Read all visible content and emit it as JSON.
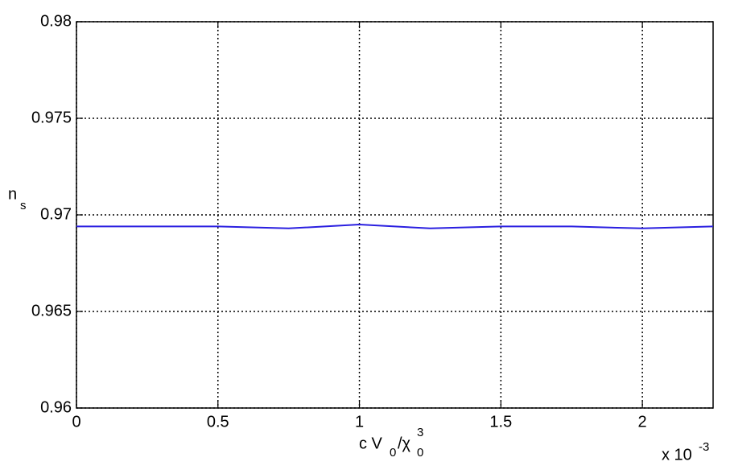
{
  "chart_data": {
    "type": "line",
    "xlabel": [
      "c V",
      "0",
      "/χ",
      "0",
      "3"
    ],
    "ylabel": [
      "n",
      "s"
    ],
    "x_multiplier": [
      "x 10",
      "-3"
    ],
    "x": [
      0,
      0.25,
      0.5,
      0.75,
      1,
      1.25,
      1.5,
      1.75,
      2,
      2.25
    ],
    "series": [
      {
        "color": "#2a1fe0",
        "values": [
          0.9694,
          0.9694,
          0.9694,
          0.9693,
          0.9695,
          0.9693,
          0.9694,
          0.9694,
          0.9693,
          0.9694
        ]
      }
    ],
    "xlim": [
      0,
      2.25
    ],
    "xticks": [
      0,
      0.5,
      1,
      1.5,
      2
    ],
    "ylim": [
      0.96,
      0.98
    ],
    "yticks": [
      0.96,
      0.965,
      0.97,
      0.975,
      0.98
    ],
    "grid": true
  }
}
